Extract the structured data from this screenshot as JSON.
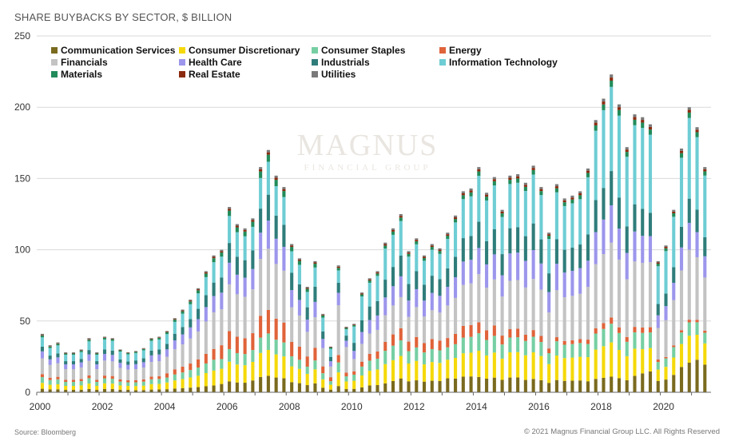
{
  "header": {
    "title": "SHARE BUYBACKS BY SECTOR, $ BILLION"
  },
  "footer": {
    "source": "Source: Bloomberg",
    "copyright": "© 2021 Magnus Financial Group LLC. All Rights Reserved"
  },
  "watermark": {
    "line1": "MAGNUS",
    "line2": "FINANCIAL GROUP"
  },
  "chart_data": {
    "type": "bar",
    "stacked": true,
    "title": "SHARE BUYBACKS BY SECTOR, $ BILLION",
    "xlabel": "",
    "ylabel": "",
    "ylim": [
      0,
      250
    ],
    "yticks": [
      0,
      50,
      100,
      150,
      200,
      250
    ],
    "x_tick_labels": [
      "2000",
      "2002",
      "2004",
      "2006",
      "2008",
      "2010",
      "2012",
      "2014",
      "2016",
      "2018",
      "2020"
    ],
    "legend_position": "top-left",
    "categories": [
      "2000Q1",
      "2000Q2",
      "2000Q3",
      "2000Q4",
      "2001Q1",
      "2001Q2",
      "2001Q3",
      "2001Q4",
      "2002Q1",
      "2002Q2",
      "2002Q3",
      "2002Q4",
      "2003Q1",
      "2003Q2",
      "2003Q3",
      "2003Q4",
      "2004Q1",
      "2004Q2",
      "2004Q3",
      "2004Q4",
      "2005Q1",
      "2005Q2",
      "2005Q3",
      "2005Q4",
      "2006Q1",
      "2006Q2",
      "2006Q3",
      "2006Q4",
      "2007Q1",
      "2007Q2",
      "2007Q3",
      "2007Q4",
      "2008Q1",
      "2008Q2",
      "2008Q3",
      "2008Q4",
      "2009Q1",
      "2009Q2",
      "2009Q3",
      "2009Q4",
      "2010Q1",
      "2010Q2",
      "2010Q3",
      "2010Q4",
      "2011Q1",
      "2011Q2",
      "2011Q3",
      "2011Q4",
      "2012Q1",
      "2012Q2",
      "2012Q3",
      "2012Q4",
      "2013Q1",
      "2013Q2",
      "2013Q3",
      "2013Q4",
      "2014Q1",
      "2014Q2",
      "2014Q3",
      "2014Q4",
      "2015Q1",
      "2015Q2",
      "2015Q3",
      "2015Q4",
      "2016Q1",
      "2016Q2",
      "2016Q3",
      "2016Q4",
      "2017Q1",
      "2017Q2",
      "2017Q3",
      "2017Q4",
      "2018Q1",
      "2018Q2",
      "2018Q3",
      "2018Q4",
      "2019Q1",
      "2019Q2",
      "2019Q3",
      "2019Q4",
      "2020Q1",
      "2020Q2",
      "2020Q3",
      "2020Q4",
      "2021Q1",
      "2021Q2"
    ],
    "totals": [
      41,
      33,
      35,
      28,
      28,
      30,
      38,
      28,
      39,
      38,
      30,
      28,
      29,
      31,
      38,
      39,
      43,
      52,
      58,
      65,
      73,
      85,
      96,
      100,
      130,
      118,
      115,
      122,
      158,
      170,
      152,
      144,
      104,
      94,
      74,
      92,
      55,
      32,
      89,
      46,
      48,
      70,
      80,
      85,
      105,
      115,
      125,
      99,
      108,
      96,
      104,
      101,
      112,
      124,
      141,
      143,
      158,
      140,
      151,
      128,
      152,
      153,
      147,
      159,
      144,
      112,
      146,
      136,
      138,
      141,
      157,
      191,
      206,
      223,
      202,
      172,
      195,
      193,
      188,
      92,
      103,
      128,
      171,
      200,
      186,
      158
    ],
    "series": [
      {
        "name": "Communication Services",
        "color": "#7a6a1e",
        "shares": [
          0.06,
          0.06,
          0.06,
          0.06,
          0.06,
          0.06,
          0.06,
          0.06,
          0.06,
          0.06,
          0.06,
          0.06,
          0.05,
          0.05,
          0.05,
          0.05,
          0.05,
          0.05,
          0.05,
          0.05,
          0.05,
          0.05,
          0.05,
          0.06,
          0.06,
          0.06,
          0.06,
          0.07,
          0.07,
          0.07,
          0.07,
          0.07,
          0.07,
          0.07,
          0.07,
          0.07,
          0.06,
          0.06,
          0.05,
          0.05,
          0.05,
          0.05,
          0.06,
          0.06,
          0.06,
          0.07,
          0.08,
          0.08,
          0.08,
          0.08,
          0.08,
          0.08,
          0.09,
          0.08,
          0.08,
          0.08,
          0.07,
          0.07,
          0.07,
          0.07,
          0.07,
          0.07,
          0.06,
          0.06,
          0.06,
          0.06,
          0.06,
          0.06,
          0.06,
          0.06,
          0.05,
          0.05,
          0.05,
          0.05,
          0.05,
          0.05,
          0.06,
          0.07,
          0.08,
          0.09,
          0.09,
          0.1,
          0.11,
          0.11,
          0.13,
          0.13
        ]
      },
      {
        "name": "Consumer Discretionary",
        "color": "#f5d90a",
        "shares": [
          0.1,
          0.1,
          0.1,
          0.1,
          0.1,
          0.1,
          0.1,
          0.1,
          0.1,
          0.1,
          0.1,
          0.1,
          0.1,
          0.1,
          0.1,
          0.1,
          0.11,
          0.11,
          0.11,
          0.11,
          0.11,
          0.11,
          0.11,
          0.11,
          0.11,
          0.11,
          0.11,
          0.11,
          0.11,
          0.11,
          0.11,
          0.11,
          0.11,
          0.11,
          0.11,
          0.11,
          0.11,
          0.11,
          0.11,
          0.12,
          0.12,
          0.12,
          0.13,
          0.13,
          0.13,
          0.13,
          0.13,
          0.13,
          0.13,
          0.13,
          0.13,
          0.13,
          0.12,
          0.12,
          0.12,
          0.12,
          0.12,
          0.12,
          0.12,
          0.12,
          0.12,
          0.12,
          0.12,
          0.12,
          0.12,
          0.12,
          0.12,
          0.12,
          0.12,
          0.12,
          0.11,
          0.11,
          0.11,
          0.11,
          0.1,
          0.1,
          0.1,
          0.09,
          0.09,
          0.09,
          0.09,
          0.1,
          0.1,
          0.1,
          0.1,
          0.1
        ]
      },
      {
        "name": "Consumer Staples",
        "color": "#76cfa3",
        "shares": [
          0.1,
          0.1,
          0.1,
          0.1,
          0.1,
          0.1,
          0.1,
          0.1,
          0.09,
          0.09,
          0.09,
          0.09,
          0.09,
          0.09,
          0.09,
          0.09,
          0.08,
          0.08,
          0.08,
          0.08,
          0.08,
          0.08,
          0.08,
          0.07,
          0.07,
          0.07,
          0.07,
          0.07,
          0.07,
          0.07,
          0.07,
          0.07,
          0.07,
          0.07,
          0.07,
          0.07,
          0.08,
          0.08,
          0.08,
          0.08,
          0.09,
          0.09,
          0.09,
          0.09,
          0.09,
          0.09,
          0.09,
          0.09,
          0.09,
          0.09,
          0.09,
          0.09,
          0.08,
          0.08,
          0.08,
          0.08,
          0.08,
          0.08,
          0.08,
          0.08,
          0.07,
          0.07,
          0.07,
          0.07,
          0.07,
          0.07,
          0.07,
          0.07,
          0.07,
          0.07,
          0.06,
          0.06,
          0.06,
          0.06,
          0.06,
          0.06,
          0.06,
          0.06,
          0.06,
          0.06,
          0.06,
          0.06,
          0.05,
          0.05,
          0.05,
          0.05
        ]
      },
      {
        "name": "Energy",
        "color": "#e0633a",
        "shares": [
          0.05,
          0.05,
          0.05,
          0.05,
          0.05,
          0.05,
          0.05,
          0.05,
          0.05,
          0.05,
          0.05,
          0.05,
          0.05,
          0.05,
          0.05,
          0.05,
          0.07,
          0.07,
          0.07,
          0.07,
          0.08,
          0.08,
          0.08,
          0.1,
          0.1,
          0.1,
          0.1,
          0.1,
          0.1,
          0.1,
          0.1,
          0.1,
          0.1,
          0.1,
          0.1,
          0.1,
          0.09,
          0.09,
          0.06,
          0.06,
          0.05,
          0.05,
          0.06,
          0.06,
          0.06,
          0.07,
          0.07,
          0.07,
          0.07,
          0.07,
          0.07,
          0.07,
          0.06,
          0.06,
          0.06,
          0.06,
          0.05,
          0.05,
          0.05,
          0.05,
          0.04,
          0.04,
          0.03,
          0.03,
          0.03,
          0.03,
          0.02,
          0.02,
          0.02,
          0.02,
          0.02,
          0.02,
          0.02,
          0.02,
          0.02,
          0.02,
          0.02,
          0.02,
          0.02,
          0.02,
          0.01,
          0.01,
          0.01,
          0.01,
          0.01,
          0.01
        ]
      },
      {
        "name": "Financials",
        "color": "#c3c3c3",
        "shares": [
          0.27,
          0.27,
          0.27,
          0.27,
          0.27,
          0.27,
          0.27,
          0.27,
          0.27,
          0.27,
          0.27,
          0.27,
          0.27,
          0.27,
          0.27,
          0.27,
          0.27,
          0.27,
          0.27,
          0.27,
          0.27,
          0.27,
          0.27,
          0.26,
          0.26,
          0.26,
          0.26,
          0.26,
          0.26,
          0.26,
          0.26,
          0.26,
          0.24,
          0.24,
          0.24,
          0.24,
          0.24,
          0.24,
          0.4,
          0.4,
          0.18,
          0.18,
          0.18,
          0.18,
          0.18,
          0.18,
          0.18,
          0.18,
          0.2,
          0.2,
          0.2,
          0.2,
          0.21,
          0.21,
          0.21,
          0.21,
          0.22,
          0.22,
          0.22,
          0.22,
          0.23,
          0.23,
          0.23,
          0.23,
          0.23,
          0.23,
          0.23,
          0.23,
          0.23,
          0.23,
          0.24,
          0.24,
          0.24,
          0.24,
          0.24,
          0.24,
          0.24,
          0.24,
          0.25,
          0.25,
          0.26,
          0.26,
          0.26,
          0.26,
          0.25,
          0.25
        ]
      },
      {
        "name": "Health Care",
        "color": "#9c96ec",
        "shares": [
          0.12,
          0.12,
          0.12,
          0.12,
          0.12,
          0.12,
          0.12,
          0.12,
          0.12,
          0.12,
          0.12,
          0.12,
          0.12,
          0.12,
          0.12,
          0.12,
          0.12,
          0.12,
          0.12,
          0.12,
          0.12,
          0.12,
          0.12,
          0.12,
          0.12,
          0.12,
          0.12,
          0.12,
          0.12,
          0.12,
          0.12,
          0.12,
          0.12,
          0.12,
          0.12,
          0.12,
          0.12,
          0.12,
          0.1,
          0.1,
          0.12,
          0.12,
          0.12,
          0.12,
          0.12,
          0.12,
          0.12,
          0.12,
          0.12,
          0.12,
          0.12,
          0.12,
          0.12,
          0.12,
          0.12,
          0.12,
          0.12,
          0.12,
          0.12,
          0.12,
          0.13,
          0.13,
          0.13,
          0.13,
          0.13,
          0.13,
          0.13,
          0.13,
          0.13,
          0.13,
          0.12,
          0.12,
          0.12,
          0.12,
          0.11,
          0.11,
          0.11,
          0.1,
          0.1,
          0.1,
          0.1,
          0.1,
          0.1,
          0.1,
          0.1,
          0.1
        ]
      },
      {
        "name": "Industrials",
        "color": "#2f7d7b",
        "shares": [
          0.08,
          0.08,
          0.08,
          0.08,
          0.08,
          0.08,
          0.08,
          0.08,
          0.08,
          0.08,
          0.08,
          0.08,
          0.09,
          0.09,
          0.09,
          0.09,
          0.09,
          0.09,
          0.09,
          0.09,
          0.1,
          0.1,
          0.1,
          0.11,
          0.11,
          0.11,
          0.11,
          0.11,
          0.11,
          0.11,
          0.11,
          0.11,
          0.12,
          0.12,
          0.12,
          0.12,
          0.1,
          0.1,
          0.08,
          0.08,
          0.12,
          0.12,
          0.12,
          0.12,
          0.12,
          0.12,
          0.12,
          0.12,
          0.12,
          0.12,
          0.12,
          0.12,
          0.12,
          0.12,
          0.12,
          0.12,
          0.12,
          0.12,
          0.12,
          0.12,
          0.12,
          0.12,
          0.12,
          0.12,
          0.12,
          0.12,
          0.12,
          0.12,
          0.12,
          0.12,
          0.12,
          0.12,
          0.11,
          0.11,
          0.11,
          0.11,
          0.1,
          0.1,
          0.09,
          0.09,
          0.09,
          0.09,
          0.09,
          0.09,
          0.09,
          0.09
        ]
      },
      {
        "name": "Information Technology",
        "color": "#6ecdd4",
        "shares": [
          0.16,
          0.16,
          0.16,
          0.16,
          0.16,
          0.16,
          0.16,
          0.16,
          0.18,
          0.18,
          0.18,
          0.18,
          0.18,
          0.18,
          0.18,
          0.18,
          0.16,
          0.16,
          0.16,
          0.16,
          0.15,
          0.15,
          0.15,
          0.15,
          0.15,
          0.15,
          0.15,
          0.14,
          0.14,
          0.14,
          0.14,
          0.14,
          0.15,
          0.15,
          0.15,
          0.15,
          0.18,
          0.18,
          0.1,
          0.1,
          0.24,
          0.24,
          0.21,
          0.21,
          0.21,
          0.2,
          0.2,
          0.2,
          0.18,
          0.18,
          0.18,
          0.18,
          0.19,
          0.2,
          0.2,
          0.2,
          0.21,
          0.21,
          0.21,
          0.21,
          0.21,
          0.21,
          0.22,
          0.22,
          0.22,
          0.22,
          0.23,
          0.23,
          0.23,
          0.23,
          0.26,
          0.26,
          0.27,
          0.27,
          0.29,
          0.29,
          0.29,
          0.3,
          0.3,
          0.3,
          0.3,
          0.29,
          0.3,
          0.3,
          0.29,
          0.29
        ]
      },
      {
        "name": "Materials",
        "color": "#228b5a",
        "shares": [
          0.03,
          0.03,
          0.03,
          0.03,
          0.03,
          0.03,
          0.03,
          0.03,
          0.03,
          0.03,
          0.03,
          0.03,
          0.03,
          0.03,
          0.03,
          0.03,
          0.03,
          0.03,
          0.03,
          0.03,
          0.03,
          0.03,
          0.03,
          0.03,
          0.03,
          0.03,
          0.03,
          0.03,
          0.03,
          0.03,
          0.03,
          0.03,
          0.03,
          0.03,
          0.03,
          0.03,
          0.03,
          0.03,
          0.02,
          0.02,
          0.02,
          0.02,
          0.02,
          0.02,
          0.02,
          0.02,
          0.02,
          0.02,
          0.02,
          0.02,
          0.02,
          0.02,
          0.02,
          0.02,
          0.02,
          0.02,
          0.02,
          0.02,
          0.02,
          0.02,
          0.02,
          0.02,
          0.02,
          0.02,
          0.02,
          0.02,
          0.02,
          0.02,
          0.02,
          0.02,
          0.02,
          0.02,
          0.02,
          0.02,
          0.02,
          0.02,
          0.02,
          0.02,
          0.02,
          0.02,
          0.02,
          0.02,
          0.02,
          0.02,
          0.02,
          0.02
        ]
      },
      {
        "name": "Real Estate",
        "color": "#8b2a0e",
        "shares": [
          0.01,
          0.01,
          0.01,
          0.01,
          0.01,
          0.01,
          0.01,
          0.01,
          0.01,
          0.01,
          0.01,
          0.01,
          0.01,
          0.01,
          0.01,
          0.01,
          0.01,
          0.01,
          0.01,
          0.01,
          0.01,
          0.01,
          0.01,
          0.01,
          0.01,
          0.01,
          0.01,
          0.01,
          0.01,
          0.01,
          0.01,
          0.01,
          0.01,
          0.01,
          0.01,
          0.01,
          0.01,
          0.01,
          0.01,
          0.01,
          0.01,
          0.01,
          0.01,
          0.01,
          0.01,
          0.01,
          0.01,
          0.01,
          0.01,
          0.01,
          0.01,
          0.01,
          0.01,
          0.01,
          0.01,
          0.01,
          0.01,
          0.01,
          0.01,
          0.01,
          0.01,
          0.01,
          0.01,
          0.01,
          0.01,
          0.01,
          0.01,
          0.01,
          0.01,
          0.01,
          0.01,
          0.01,
          0.01,
          0.01,
          0.01,
          0.01,
          0.01,
          0.01,
          0.01,
          0.01,
          0.01,
          0.01,
          0.01,
          0.01,
          0.01,
          0.01
        ]
      },
      {
        "name": "Utilities",
        "color": "#7a7a7a",
        "shares": [
          0.02,
          0.02,
          0.02,
          0.02,
          0.02,
          0.02,
          0.02,
          0.02,
          0.01,
          0.01,
          0.01,
          0.01,
          0.01,
          0.01,
          0.01,
          0.01,
          0.01,
          0.01,
          0.01,
          0.01,
          0.01,
          0.01,
          0.01,
          0.01,
          0.01,
          0.01,
          0.01,
          0.01,
          0.01,
          0.01,
          0.01,
          0.01,
          0.01,
          0.01,
          0.01,
          0.01,
          0.01,
          0.01,
          0.01,
          0.01,
          0.01,
          0.01,
          0.01,
          0.01,
          0.01,
          0.01,
          0.01,
          0.01,
          0.01,
          0.01,
          0.01,
          0.01,
          0.01,
          0.01,
          0.01,
          0.01,
          0.01,
          0.01,
          0.01,
          0.01,
          0.01,
          0.01,
          0.01,
          0.01,
          0.01,
          0.01,
          0.01,
          0.01,
          0.01,
          0.01,
          0.01,
          0.01,
          0.01,
          0.01,
          0.01,
          0.01,
          0.01,
          0.01,
          0.01,
          0.01,
          0.01,
          0.01,
          0.01,
          0.01,
          0.01,
          0.01
        ]
      }
    ]
  }
}
